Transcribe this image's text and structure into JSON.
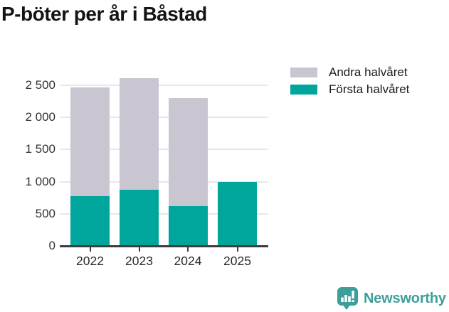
{
  "title": "P-böter per år i Båstad",
  "chart_data": {
    "type": "bar",
    "stacked": true,
    "title": "P-böter per år i Båstad",
    "categories": [
      "2022",
      "2023",
      "2024",
      "2025"
    ],
    "series": [
      {
        "name": "Första halvåret",
        "color": "#00a59b",
        "values": [
          770,
          870,
          620,
          1000
        ]
      },
      {
        "name": "Andra halvåret",
        "color": "#c9c6d1",
        "values": [
          1690,
          1740,
          1680,
          0
        ]
      }
    ],
    "xlabel": "",
    "ylabel": "",
    "ylim": [
      0,
      2720
    ],
    "yticks": [
      0,
      500,
      1000,
      1500,
      2000,
      2500
    ],
    "ytick_labels": [
      "0",
      "500",
      "1 000",
      "1 500",
      "2 000",
      "2 500"
    ],
    "grid": "horizontal",
    "legend_position": "top-right",
    "legend": [
      {
        "label": "Andra halvåret",
        "color": "#c9c6d1"
      },
      {
        "label": "Första halvåret",
        "color": "#00a59b"
      }
    ],
    "colors": {
      "axis_line": "#3d3d3d",
      "grid_line": "#e8e6ea",
      "tick_text": "#333333"
    }
  },
  "branding": {
    "logo_text": "Newsworthy",
    "logo_color": "#3d9f9a",
    "logo_icon": "bar-chart-speech-bubble-icon"
  }
}
